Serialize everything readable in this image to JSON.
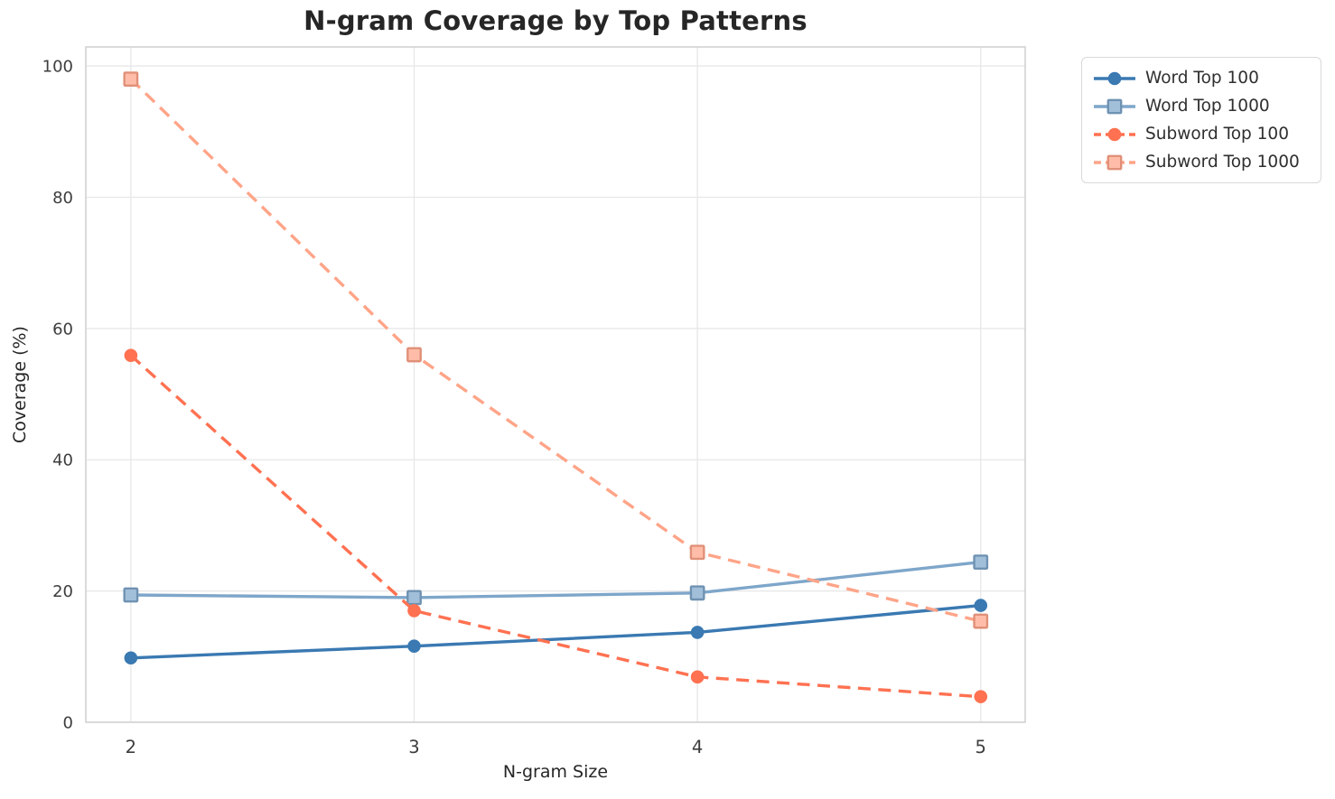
{
  "chart_data": {
    "type": "line",
    "title": "N-gram Coverage by Top Patterns",
    "xlabel": "N-gram Size",
    "ylabel": "Coverage (%)",
    "x": [
      2,
      3,
      4,
      5
    ],
    "xtick_labels": [
      "2",
      "3",
      "4",
      "5"
    ],
    "yticks": [
      0,
      20,
      40,
      60,
      80,
      100
    ],
    "xlim": [
      1.841,
      5.157
    ],
    "ylim": [
      0,
      102.9
    ],
    "grid": true,
    "legend_position": "outside upper right",
    "series": [
      {
        "name": "Word Top 100",
        "color": "#3a79b2",
        "marker": "circle",
        "line_style": "solid",
        "values": [
          9.8,
          11.6,
          13.7,
          17.8
        ]
      },
      {
        "name": "Word Top 1000",
        "color": "#7ea6ca",
        "marker": "square",
        "line_style": "solid",
        "values": [
          19.4,
          19.0,
          19.7,
          24.4
        ]
      },
      {
        "name": "Subword Top 100",
        "color": "#ff7151",
        "marker": "circle",
        "line_style": "dashed",
        "values": [
          55.9,
          17.0,
          6.9,
          3.9
        ]
      },
      {
        "name": "Subword Top 1000",
        "color": "#ffa488",
        "marker": "square",
        "line_style": "dashed",
        "values": [
          98.0,
          56.0,
          25.9,
          15.4
        ]
      }
    ],
    "colors": {
      "background": "#ffffff",
      "grid": "#e7e7e7",
      "spine": "#cfcfcf",
      "title_text": "#262626",
      "tick_text": "#3d3d3d"
    }
  }
}
